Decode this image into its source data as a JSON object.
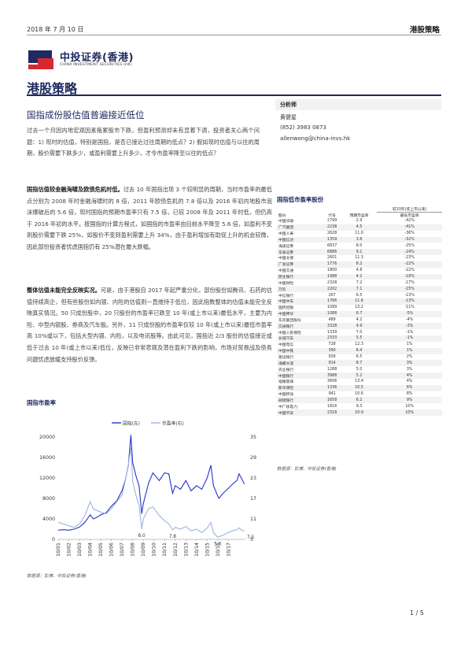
{
  "header": {
    "date": "2018 年 7 月 10 日",
    "title": "港股策略"
  },
  "logo": {
    "name_cn": "中投证券(香港)",
    "name_en": "CHINA INVESTMENT SECURITIES (HK)"
  },
  "page_title": "港股策略",
  "article": {
    "title": "国指成份股估值普遍接近低位",
    "intro": "过去一个月因内地宏观因素拖累股市下跌，但盈利预测却未有显着下调，投资者关心两个问题：1) 现时的估值，特别是国指，是否已接近过往周期的低点？2) 假如现时估值与以往的周期，股价需要下跌多少，或盈利需要上升多少，才令市盈率降至以往的低点？",
    "p1_bold": "国指估值较金融海啸及欧债危机时低。",
    "p1": "过去 10 年国指出现 3 个较明显的周期，当时市盈率的最低点分别为 2008 年时金融海啸时的 8 倍，2011 年欧债危机的 7.8 倍以及 2016 年初内地股市泡沫爆破后的 5.6 倍，现时国指的预期市盈率只有 7.5 倍，已较 2008 年及 2011 年时低，但仍高于 2016 年初的水平。按国指的计算方程式，如国指的市盈率由目前水平降至 5.6 倍，如盈利不变则股价需要下跌 25%，如股价不变则盈利需要上升 34%，由于盈利增加有助促上升的机会较微，因此部份投资者忧虑国指仍有 25%潜在最大跌幅。",
    "p2_bold": "整体估值未能完全反映实况。",
    "p2": "可是，由于港股自 2017 年起严重分化，部份股份如腾讯、石药的估值持续高企，但有些股份如内银、内险的估值则一直维持于低位，因此指数整体的估值未能完全反映真实情况。50 只成份股中，20 只股份的市盈率已跌至 10 年(或上市以来)最低水平，主要为内险、中型内银股、券商及汽车股。另外，11 只成份股的市盈率仅较 10 年(或上市以来)最低市盈率高 10%或以下，包括大型内银、内险，以及电讯股等。由此可见，国指近 2/3 股份的估值接近或低于过去 10 年(或上市以来)低位，反映已非常悲观及潜在盈利下跌的影响，市场对贸易战及债务问题忧虑放缓支持股价反弹。"
  },
  "analyst": {
    "heading": "分析师",
    "name": "黄健星",
    "phone": "(852) 3983 0873",
    "email": "allenwong@china-invs.hk"
  },
  "table": {
    "title": "国指低市盈率股份",
    "header_top": "较10年(或上市以来)",
    "columns": [
      "股份",
      "代号",
      "预期市盈率",
      "最低市盈率"
    ],
    "rows": [
      [
        "中国华融",
        "2799",
        "2.9",
        "-42%"
      ],
      [
        "广汽集团",
        "2238",
        "4.5",
        "-41%"
      ],
      [
        "中国人寿",
        "2628",
        "11.0",
        "-36%"
      ],
      [
        "中国信达",
        "1359",
        "3.6",
        "-32%"
      ],
      [
        "海通证券",
        "6837",
        "8.0",
        "-25%"
      ],
      [
        "华泰证券",
        "6886",
        "9.1",
        "-24%"
      ],
      [
        "中国太保",
        "2601",
        "11.3",
        "-23%"
      ],
      [
        "广发证券",
        "1776",
        "8.2",
        "-22%"
      ],
      [
        "中国交通",
        "1800",
        "4.8",
        "-22%"
      ],
      [
        "民生银行",
        "1988",
        "4.2",
        "-19%"
      ],
      [
        "中国财险",
        "2328",
        "7.2",
        "-17%"
      ],
      [
        "万科",
        "2202",
        "7.1",
        "-15%"
      ],
      [
        "中信银行",
        "267",
        "6.5",
        "-13%"
      ],
      [
        "中国中车",
        "1766",
        "11.6",
        "-13%"
      ],
      [
        "国药控股",
        "1099",
        "13.2",
        "-11%"
      ],
      [
        "中国神华",
        "1088",
        "6.7",
        "-5%"
      ],
      [
        "东风集团股份",
        "489",
        "4.2",
        "-4%"
      ],
      [
        "交通银行",
        "3328",
        "4.9",
        "-3%"
      ],
      [
        "中国人民保险",
        "1339",
        "7.0",
        "-1%"
      ],
      [
        "长城汽车",
        "2333",
        "5.5",
        "-1%"
      ],
      [
        "中国电信",
        "728",
        "12.3",
        "1%"
      ],
      [
        "中国中铁",
        "390",
        "6.4",
        "1%"
      ],
      [
        "建设银行",
        "939",
        "6.5",
        "2%"
      ],
      [
        "海螺水泥",
        "914",
        "8.7",
        "3%"
      ],
      [
        "农业银行",
        "1288",
        "5.0",
        "3%"
      ],
      [
        "中国银行",
        "3988",
        "5.2",
        "4%"
      ],
      [
        "福耀玻璃",
        "3606",
        "13.4",
        "4%"
      ],
      [
        "新华保险",
        "1336",
        "10.5",
        "6%"
      ],
      [
        "中国移动",
        "941",
        "10.6",
        "8%"
      ],
      [
        "邮储银行",
        "1658",
        "6.2",
        "9%"
      ],
      [
        "中广核电力",
        "1816",
        "9.3",
        "10%"
      ],
      [
        "中国平安",
        "2318",
        "10.9",
        "10%"
      ]
    ],
    "source": "数据源：彭博、中投证券(香港)"
  },
  "chart_title": "国指市盈率",
  "chart_source": "数据源：彭博、中投证券(香港)",
  "colors": {
    "index": "#2233cc",
    "pe": "#9fb4dc",
    "title": "#1f2a60",
    "logo_red": "#d7282f",
    "logo_navy": "#1f2a60"
  },
  "chart_data": {
    "type": "line",
    "legend": [
      "国指(左)",
      "市盈率(右)"
    ],
    "x_ticks": [
      "10/01",
      "10/02",
      "10/03",
      "10/04",
      "10/05",
      "10/06",
      "10/07",
      "10/08",
      "10/09",
      "10/10",
      "10/11",
      "10/12",
      "10/13",
      "10/14",
      "10/15",
      "10/16",
      "10/17"
    ],
    "y_left": {
      "ticks": [
        0,
        4000,
        8000,
        12000,
        16000,
        20000
      ],
      "range": [
        0,
        20000
      ]
    },
    "y_right": {
      "ticks": [
        5,
        11,
        17,
        23,
        29,
        35
      ],
      "range": [
        5,
        35
      ]
    },
    "annotations": [
      "8.0",
      "7.8",
      "5.6",
      "7.5"
    ],
    "series": [
      {
        "name": "国指(左)",
        "axis": "left",
        "x": [
          2001.0,
          2001.5,
          2002.0,
          2002.5,
          2003.0,
          2003.5,
          2004.0,
          2004.3,
          2004.6,
          2005.0,
          2005.5,
          2006.0,
          2006.5,
          2007.0,
          2007.3,
          2007.6,
          2007.83,
          2008.0,
          2008.3,
          2008.6,
          2008.85,
          2009.0,
          2009.5,
          2009.9,
          2010.5,
          2011.0,
          2011.4,
          2011.75,
          2012.0,
          2012.5,
          2013.0,
          2013.5,
          2014.0,
          2014.5,
          2015.0,
          2015.35,
          2015.6,
          2016.0,
          2016.1,
          2016.5,
          2017.0,
          2017.5,
          2017.8,
          2018.0,
          2018.3,
          2018.5
        ],
        "y": [
          1800,
          1900,
          1800,
          2000,
          2400,
          3300,
          4800,
          4000,
          4300,
          4800,
          5200,
          6500,
          7500,
          9500,
          11500,
          14500,
          20400,
          15000,
          12500,
          10500,
          5000,
          7000,
          11000,
          13000,
          11500,
          13000,
          12800,
          9000,
          10500,
          9800,
          11500,
          9500,
          10500,
          9800,
          12000,
          14500,
          10500,
          8500,
          8000,
          9000,
          10000,
          11000,
          11500,
          12800,
          11700,
          10800
        ]
      },
      {
        "name": "市盈率(右)",
        "axis": "right",
        "x": [
          2001.0,
          2001.5,
          2002.0,
          2002.5,
          2003.0,
          2003.5,
          2004.0,
          2004.3,
          2004.6,
          2005.0,
          2005.5,
          2006.0,
          2006.5,
          2007.0,
          2007.3,
          2007.6,
          2007.83,
          2008.0,
          2008.3,
          2008.6,
          2008.85,
          2009.0,
          2009.5,
          2009.9,
          2010.5,
          2011.0,
          2011.4,
          2011.75,
          2012.0,
          2012.5,
          2013.0,
          2013.5,
          2014.0,
          2014.5,
          2015.0,
          2015.35,
          2015.6,
          2016.0,
          2016.1,
          2016.5,
          2017.0,
          2017.5,
          2017.8,
          2018.0,
          2018.3,
          2018.5
        ],
        "y": [
          10,
          9.5,
          9,
          8.5,
          9.5,
          12,
          16,
          14,
          13.5,
          13,
          12.5,
          14,
          16,
          18,
          22,
          27,
          32,
          22,
          18,
          15,
          8.0,
          11,
          14,
          14.5,
          12,
          10.5,
          9.5,
          7.8,
          8.5,
          8,
          8.8,
          7.5,
          8,
          7,
          8.3,
          10,
          7,
          5.6,
          5.8,
          6.2,
          7,
          7.6,
          7.8,
          8.4,
          7.6,
          7.5
        ]
      }
    ]
  }
}
